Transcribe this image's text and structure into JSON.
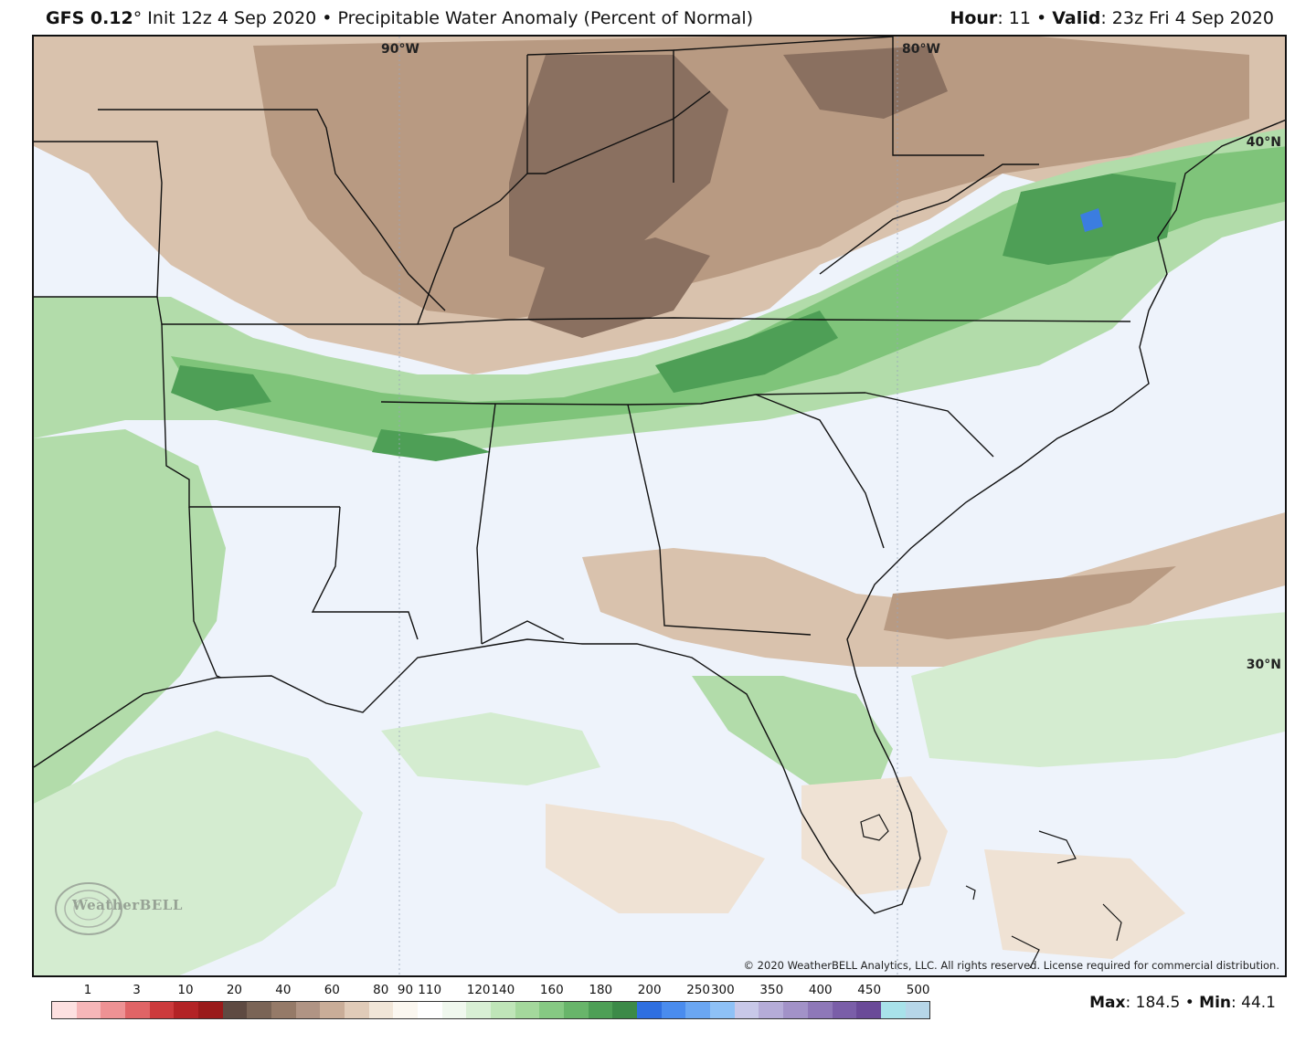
{
  "header": {
    "model": "GFS 0.12",
    "degree": "°",
    "init": " Init 12z 4 Sep 2020",
    "sep": " • ",
    "product": "Precipitable Water Anomaly (Percent of Normal)",
    "hour_label": "Hour",
    "hour_value": ": 11",
    "valid_label": "Valid",
    "valid_value": ": 23z Fri 4 Sep 2020"
  },
  "map": {
    "lon_labels": [
      "90°W",
      "80°W"
    ],
    "lat_labels": [
      "40°N",
      "30°N"
    ],
    "copyright": "© 2020 WeatherBELL Analytics, LLC. All rights reserved. License required for commercial distribution.",
    "logo_text": "WeatherBELL",
    "colors": {
      "dry_dark": "#8a7060",
      "dry_mid": "#b89a82",
      "dry_light": "#d9c2ad",
      "dry_pale": "#efe2d4",
      "near_normal": "#eef3fb",
      "wet_pale": "#d4ecd0",
      "wet_light": "#b2dcaa",
      "wet_mid": "#7fc47a",
      "wet_dark": "#4e9f56",
      "very_wet": "#3b7de0"
    }
  },
  "legend": {
    "labels": [
      "1",
      "3",
      "10",
      "20",
      "40",
      "60",
      "80",
      "90",
      "110",
      "120",
      "140",
      "160",
      "180",
      "200",
      "250",
      "300",
      "350",
      "400",
      "450",
      "500"
    ],
    "colors": [
      "#fde0e0",
      "#f6b6b8",
      "#ee9294",
      "#e06466",
      "#cc3a3c",
      "#b32325",
      "#9a1a1a",
      "#5e4a42",
      "#7a6456",
      "#957a68",
      "#b09484",
      "#c9ad98",
      "#e0cbb8",
      "#f1e6d8",
      "#fbf7f0",
      "#ffffff",
      "#f0f8ee",
      "#d8efd4",
      "#bfe5b8",
      "#a4d89c",
      "#86c983",
      "#68b56a",
      "#4e9f56",
      "#3c8a48",
      "#2f6fe0",
      "#4a8cee",
      "#6aa6f2",
      "#8ec1f6",
      "#c8c8e8",
      "#b5acd8",
      "#a292c8",
      "#8e78b8",
      "#7a5ea8",
      "#6a4a98",
      "#a8e2ea",
      "#b6d6e8"
    ]
  },
  "stats": {
    "max_label": "Max",
    "max_value": ": 184.5",
    "min_label": "Min",
    "min_value": ": 44.1"
  }
}
